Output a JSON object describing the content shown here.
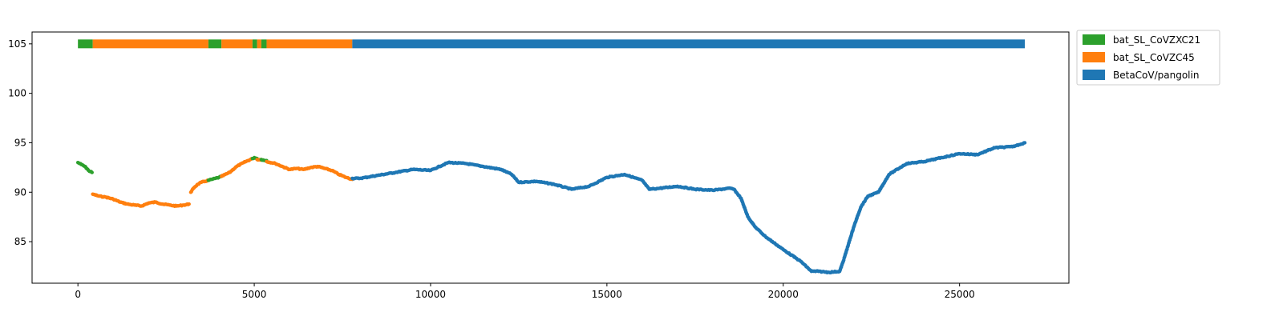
{
  "chart_data": {
    "type": "scatter",
    "title": "",
    "xlabel": "",
    "ylabel": "",
    "xlim": [
      -1300,
      28100
    ],
    "ylim": [
      80.8,
      106.2
    ],
    "xticks": [
      0,
      5000,
      10000,
      15000,
      20000,
      25000
    ],
    "yticks": [
      85,
      90,
      95,
      100,
      105
    ],
    "grid": false,
    "legend_position": "outside top-right",
    "colors": {
      "bat_SL_CoVZXC21": "#2ca02c",
      "bat_SL_CoVZC45": "#ff7f0e",
      "BetaCoV/pangolin": "#1f77b4"
    },
    "legend": [
      "bat_SL_CoVZXC21",
      "bat_SL_CoVZC45",
      "BetaCoV/pangolin"
    ],
    "top_bar": {
      "y": 105,
      "segments": [
        {
          "label": "bat_SL_CoVZXC21",
          "start": 0,
          "end": 420
        },
        {
          "label": "bat_SL_CoVZC45",
          "start": 420,
          "end": 3700
        },
        {
          "label": "bat_SL_CoVZXC21",
          "start": 3700,
          "end": 4070
        },
        {
          "label": "bat_SL_CoVZC45",
          "start": 4070,
          "end": 4950
        },
        {
          "label": "bat_SL_CoVZXC21",
          "start": 4950,
          "end": 5080
        },
        {
          "label": "bat_SL_CoVZC45",
          "start": 5080,
          "end": 5200
        },
        {
          "label": "bat_SL_CoVZXC21",
          "start": 5200,
          "end": 5350
        },
        {
          "label": "bat_SL_CoVZC45",
          "start": 5350,
          "end": 7780
        },
        {
          "label": "BetaCoV/pangolin",
          "start": 7780,
          "end": 26850
        }
      ]
    },
    "series": [
      {
        "name": "bat_SL_CoVZXC21",
        "x": [
          0,
          100,
          200,
          300,
          400
        ],
        "y": [
          93.0,
          92.8,
          92.6,
          92.2,
          92.0
        ]
      },
      {
        "name": "bat_SL_CoVZC45",
        "x": [
          420,
          600,
          800,
          1000,
          1200,
          1400,
          1600,
          1800,
          2000,
          2200,
          2400,
          2600,
          2800,
          3000,
          3150
        ],
        "y": [
          89.8,
          89.6,
          89.5,
          89.3,
          89.0,
          88.8,
          88.7,
          88.6,
          88.9,
          89.0,
          88.8,
          88.7,
          88.6,
          88.7,
          88.8
        ]
      },
      {
        "name": "bat_SL_CoVZC45",
        "x": [
          3200,
          3300,
          3400,
          3500,
          3600,
          3700
        ],
        "y": [
          90.0,
          90.5,
          90.8,
          91.0,
          91.1,
          91.2
        ]
      },
      {
        "name": "bat_SL_CoVZXC21",
        "x": [
          3700,
          3800,
          3900,
          4000,
          4070
        ],
        "y": [
          91.2,
          91.3,
          91.4,
          91.5,
          91.6
        ]
      },
      {
        "name": "bat_SL_CoVZC45",
        "x": [
          4070,
          4300,
          4500,
          4700,
          4950
        ],
        "y": [
          91.6,
          92.0,
          92.6,
          93.0,
          93.4
        ]
      },
      {
        "name": "bat_SL_CoVZXC21",
        "x": [
          4950,
          5000,
          5080
        ],
        "y": [
          93.4,
          93.5,
          93.4
        ]
      },
      {
        "name": "bat_SL_CoVZC45",
        "x": [
          5080,
          5200
        ],
        "y": [
          93.3,
          93.3
        ]
      },
      {
        "name": "bat_SL_CoVZXC21",
        "x": [
          5200,
          5300,
          5350
        ],
        "y": [
          93.3,
          93.2,
          93.2
        ]
      },
      {
        "name": "bat_SL_CoVZC45",
        "x": [
          5350,
          5600,
          5800,
          6000,
          6200,
          6400,
          6600,
          6800,
          7000,
          7200,
          7400,
          7600,
          7780
        ],
        "y": [
          93.1,
          92.9,
          92.6,
          92.3,
          92.4,
          92.3,
          92.5,
          92.6,
          92.4,
          92.2,
          91.8,
          91.5,
          91.3
        ]
      },
      {
        "name": "BetaCoV/pangolin",
        "x": [
          7780,
          8000,
          8500,
          9000,
          9500,
          10000,
          10500,
          11000,
          11500,
          12000,
          12300,
          12500,
          13000,
          13500,
          14000,
          14500,
          15000,
          15500,
          16000,
          16200,
          16500,
          17000,
          17500,
          18000,
          18500,
          18600,
          18800,
          19000,
          19200,
          19500,
          20000,
          20500,
          20800,
          21000,
          21300,
          21600,
          21700,
          22000,
          22200,
          22400,
          22700,
          23000,
          23500,
          24000,
          24500,
          25000,
          25500,
          26000,
          26500,
          26850
        ],
        "y": [
          91.4,
          91.4,
          91.7,
          92.0,
          92.3,
          92.2,
          93.0,
          92.9,
          92.6,
          92.3,
          91.8,
          91.0,
          91.1,
          90.8,
          90.3,
          90.6,
          91.5,
          91.8,
          91.2,
          90.3,
          90.4,
          90.6,
          90.3,
          90.2,
          90.4,
          90.3,
          89.4,
          87.5,
          86.5,
          85.5,
          84.2,
          83.0,
          82.0,
          82.0,
          81.9,
          82.0,
          83.0,
          86.5,
          88.5,
          89.6,
          90.0,
          91.8,
          92.9,
          93.1,
          93.5,
          93.9,
          93.8,
          94.5,
          94.6,
          95.0
        ]
      }
    ]
  }
}
